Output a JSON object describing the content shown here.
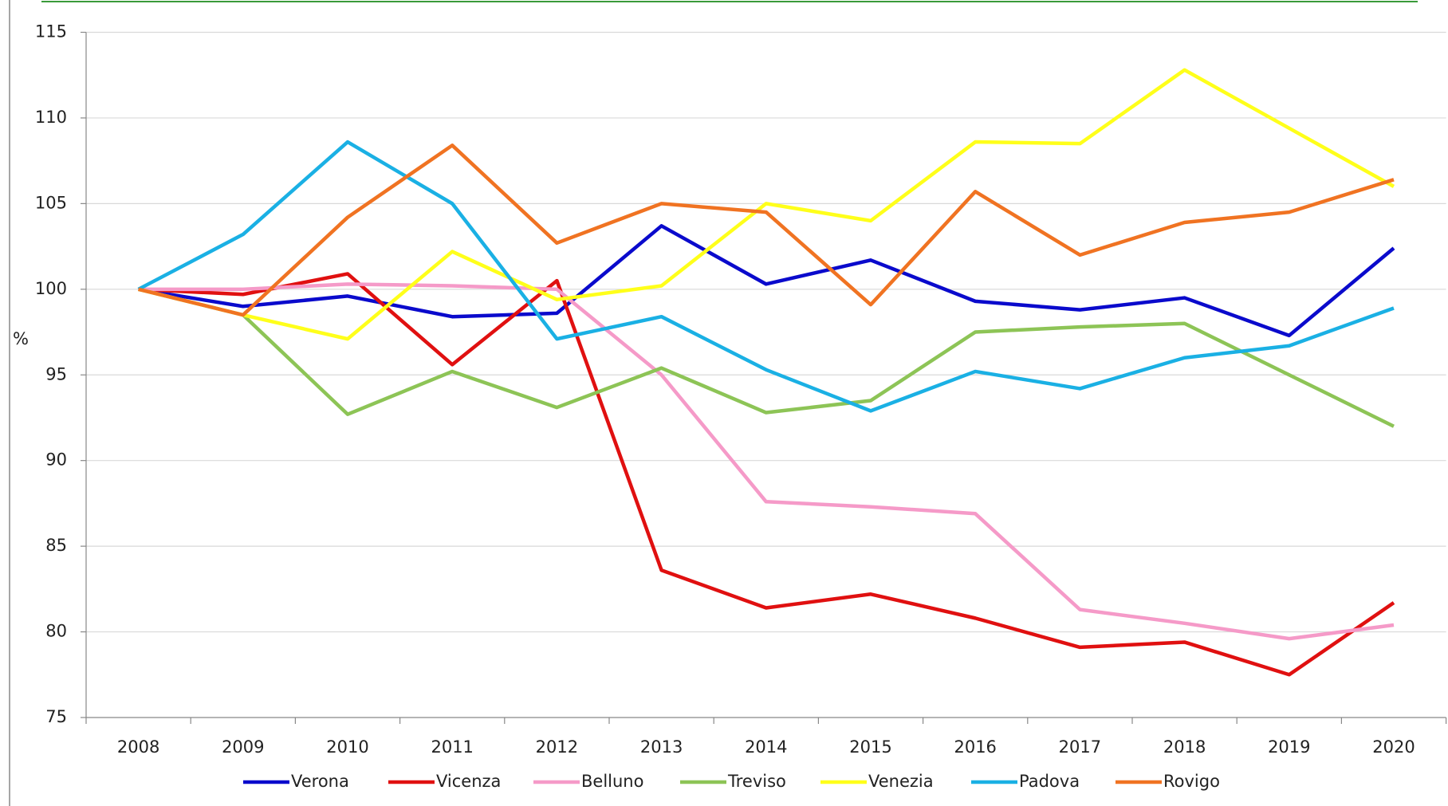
{
  "chart_data": {
    "type": "line",
    "y_label": "%",
    "categories": [
      "2008",
      "2009",
      "2010",
      "2011",
      "2012",
      "2013",
      "2014",
      "2015",
      "2016",
      "2017",
      "2018",
      "2019",
      "2020"
    ],
    "ylim": [
      75,
      115
    ],
    "yticks": [
      75,
      80,
      85,
      90,
      95,
      100,
      105,
      110,
      115
    ],
    "grid": true,
    "legend": "bottom",
    "series": [
      {
        "name": "Verona",
        "color": "#0a0acc",
        "values": [
          100,
          99.0,
          99.6,
          98.4,
          98.6,
          103.7,
          100.3,
          101.7,
          99.3,
          98.8,
          99.5,
          97.3,
          102.4
        ]
      },
      {
        "name": "Vicenza",
        "color": "#e01010",
        "values": [
          100,
          99.7,
          100.9,
          95.6,
          100.5,
          83.6,
          81.4,
          82.2,
          80.8,
          79.1,
          79.4,
          77.5,
          81.7
        ]
      },
      {
        "name": "Belluno",
        "color": "#f59ac8",
        "values": [
          100,
          100.0,
          100.3,
          100.2,
          100.0,
          95.0,
          87.6,
          87.3,
          86.9,
          81.3,
          80.5,
          79.6,
          80.4
        ]
      },
      {
        "name": "Treviso",
        "color": "#8dc456",
        "values": [
          100,
          98.5,
          92.7,
          95.2,
          93.1,
          95.4,
          92.8,
          93.5,
          97.5,
          97.8,
          98.0,
          95.0,
          92.0
        ]
      },
      {
        "name": "Venezia",
        "color": "#ffff1a",
        "values": [
          100,
          98.5,
          97.1,
          102.2,
          99.4,
          100.2,
          105.0,
          104.0,
          108.6,
          108.5,
          112.8,
          109.4,
          106.0
        ]
      },
      {
        "name": "Padova",
        "color": "#1ab0e4",
        "values": [
          100,
          103.2,
          108.6,
          105.0,
          97.1,
          98.4,
          95.3,
          92.9,
          95.2,
          94.2,
          96.0,
          96.7,
          98.9
        ]
      },
      {
        "name": "Rovigo",
        "color": "#f07322",
        "values": [
          100,
          98.5,
          104.2,
          108.4,
          102.7,
          105.0,
          104.5,
          99.1,
          105.7,
          102.0,
          103.9,
          104.5,
          106.4
        ]
      }
    ]
  }
}
